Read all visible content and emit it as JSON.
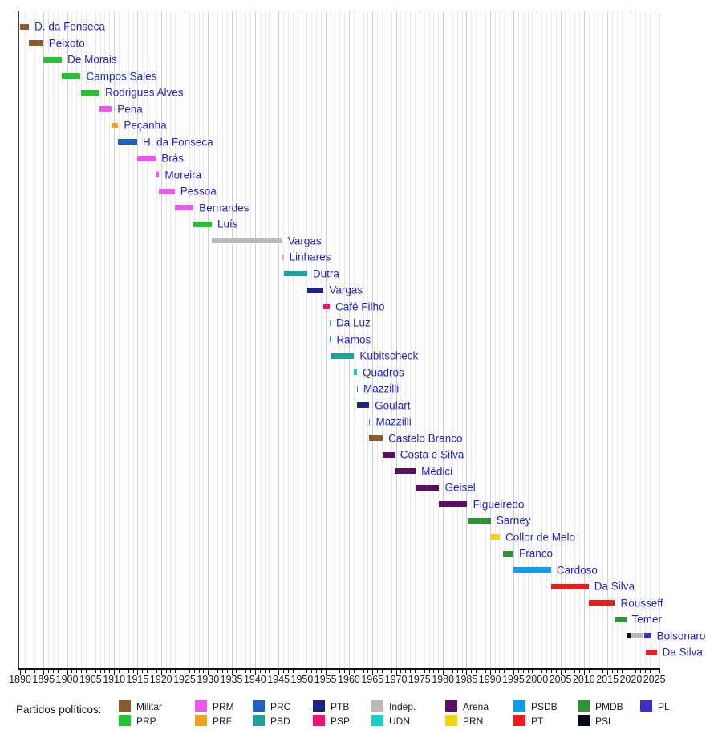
{
  "chart_data": {
    "type": "timeline-gantt",
    "description": "Timeline of presidents of Brazil colored by political party",
    "x_axis": {
      "start_year": 1890,
      "end_year": 2025,
      "minor_tick_interval": 1,
      "major_tick_interval": 5,
      "tick_labels": [
        "1890",
        "1895",
        "1900",
        "1905",
        "1910",
        "1915",
        "1920",
        "1925",
        "1930",
        "1935",
        "1940",
        "1945",
        "1950",
        "1955",
        "1960",
        "1965",
        "1970",
        "1975",
        "1980",
        "1985",
        "1990",
        "1995",
        "2000",
        "2005",
        "2010",
        "2015",
        "2020",
        "2025"
      ]
    },
    "parties": [
      {
        "name": "Militar",
        "color": "#8a5b2b"
      },
      {
        "name": "PRP",
        "color": "#23c432"
      },
      {
        "name": "PRM",
        "color": "#ee58ea"
      },
      {
        "name": "PRF",
        "color": "#f0a21f"
      },
      {
        "name": "PRC",
        "color": "#1d62c6"
      },
      {
        "name": "PSD",
        "color": "#1ea19b"
      },
      {
        "name": "PTB",
        "color": "#1b2383"
      },
      {
        "name": "PSP",
        "color": "#f01170"
      },
      {
        "name": "Indep.",
        "color": "#b9b9b9"
      },
      {
        "name": "UDN",
        "color": "#16cfc6"
      },
      {
        "name": "Arena",
        "color": "#5c0f63"
      },
      {
        "name": "PRN",
        "color": "#f4d50c"
      },
      {
        "name": "PSDB",
        "color": "#0f9cea"
      },
      {
        "name": "PT",
        "color": "#ec1c1c"
      },
      {
        "name": "PMDB",
        "color": "#2d9434"
      },
      {
        "name": "PSL",
        "color": "#050b12"
      },
      {
        "name": "PL",
        "color": "#3a31c8"
      }
    ],
    "presidents": [
      {
        "label": "D. da Fonseca",
        "segments": [
          {
            "party": "Militar",
            "start": 1890.0,
            "end": 1891.9
          }
        ]
      },
      {
        "label": "Peixoto",
        "segments": [
          {
            "party": "Militar",
            "start": 1891.9,
            "end": 1894.9
          }
        ]
      },
      {
        "label": "De Morais",
        "segments": [
          {
            "party": "PRP",
            "start": 1894.9,
            "end": 1898.9
          }
        ]
      },
      {
        "label": "Campos Sales",
        "segments": [
          {
            "party": "PRP",
            "start": 1898.9,
            "end": 1902.9
          }
        ]
      },
      {
        "label": "Rodrigues Alves",
        "segments": [
          {
            "party": "PRP",
            "start": 1902.9,
            "end": 1906.9
          }
        ]
      },
      {
        "label": "Pena",
        "segments": [
          {
            "party": "PRM",
            "start": 1906.9,
            "end": 1909.5
          }
        ]
      },
      {
        "label": "Peçanha",
        "segments": [
          {
            "party": "PRF",
            "start": 1909.5,
            "end": 1910.9
          }
        ]
      },
      {
        "label": "H. da Fonseca",
        "segments": [
          {
            "party": "PRC",
            "start": 1910.9,
            "end": 1914.9
          }
        ]
      },
      {
        "label": "Brás",
        "segments": [
          {
            "party": "PRM",
            "start": 1914.9,
            "end": 1918.9
          }
        ]
      },
      {
        "label": "Moreira",
        "segments": [
          {
            "party": "PRM",
            "start": 1918.9,
            "end": 1919.6
          }
        ]
      },
      {
        "label": "Pessoa",
        "segments": [
          {
            "party": "PRM",
            "start": 1919.6,
            "end": 1922.9
          }
        ]
      },
      {
        "label": "Bernardes",
        "segments": [
          {
            "party": "PRM",
            "start": 1922.9,
            "end": 1926.9
          }
        ]
      },
      {
        "label": "Luís",
        "segments": [
          {
            "party": "PRP",
            "start": 1926.9,
            "end": 1930.8
          }
        ]
      },
      {
        "label": "Vargas",
        "segments": [
          {
            "party": "Indep.",
            "start": 1930.8,
            "end": 1945.8
          }
        ]
      },
      {
        "label": "Linhares",
        "segments": [
          {
            "party": "Indep.",
            "start": 1945.8,
            "end": 1946.1
          }
        ]
      },
      {
        "label": "Dutra",
        "segments": [
          {
            "party": "PSD",
            "start": 1946.1,
            "end": 1951.1
          }
        ]
      },
      {
        "label": "Vargas",
        "segments": [
          {
            "party": "PTB",
            "start": 1951.1,
            "end": 1954.6
          }
        ]
      },
      {
        "label": "Café Filho",
        "segments": [
          {
            "party": "PSP",
            "start": 1954.6,
            "end": 1955.9
          }
        ]
      },
      {
        "label": "Da Luz",
        "segments": [
          {
            "party": "PSD",
            "start": 1955.85,
            "end": 1956.0
          }
        ]
      },
      {
        "label": "Ramos",
        "segments": [
          {
            "party": "PSD",
            "start": 1955.9,
            "end": 1956.15
          }
        ]
      },
      {
        "label": "Kubitscheck",
        "segments": [
          {
            "party": "PSD",
            "start": 1956.1,
            "end": 1961.1
          }
        ]
      },
      {
        "label": "Quadros",
        "segments": [
          {
            "party": "UDN",
            "start": 1961.1,
            "end": 1961.7
          }
        ]
      },
      {
        "label": "Mazzilli",
        "segments": [
          {
            "party": "PSD",
            "start": 1961.65,
            "end": 1961.85
          }
        ]
      },
      {
        "label": "Goulart",
        "segments": [
          {
            "party": "PTB",
            "start": 1961.7,
            "end": 1964.3
          }
        ]
      },
      {
        "label": "Mazzilli",
        "segments": [
          {
            "party": "PSD",
            "start": 1964.3,
            "end": 1964.5
          }
        ]
      },
      {
        "label": "Castelo Branco",
        "segments": [
          {
            "party": "Militar",
            "start": 1964.3,
            "end": 1967.2
          }
        ]
      },
      {
        "label": "Costa e Silva",
        "segments": [
          {
            "party": "Arena",
            "start": 1967.2,
            "end": 1969.7
          }
        ]
      },
      {
        "label": "Médici",
        "segments": [
          {
            "party": "Arena",
            "start": 1969.75,
            "end": 1974.2
          }
        ]
      },
      {
        "label": "Geisel",
        "segments": [
          {
            "party": "Arena",
            "start": 1974.2,
            "end": 1979.2
          }
        ]
      },
      {
        "label": "Figueiredo",
        "segments": [
          {
            "party": "Arena",
            "start": 1979.2,
            "end": 1985.2
          }
        ]
      },
      {
        "label": "Sarney",
        "segments": [
          {
            "party": "PMDB",
            "start": 1985.2,
            "end": 1990.2
          }
        ]
      },
      {
        "label": "Collor de Melo",
        "segments": [
          {
            "party": "PRN",
            "start": 1990.2,
            "end": 1992.1
          }
        ]
      },
      {
        "label": "Franco",
        "segments": [
          {
            "party": "PMDB",
            "start": 1992.8,
            "end": 1995.0
          }
        ]
      },
      {
        "label": "Cardoso",
        "segments": [
          {
            "party": "PSDB",
            "start": 1995.0,
            "end": 2003.0
          }
        ]
      },
      {
        "label": "Da Silva",
        "segments": [
          {
            "party": "PT",
            "start": 2003.0,
            "end": 2011.0
          }
        ]
      },
      {
        "label": "Rousseff",
        "segments": [
          {
            "party": "PT",
            "start": 2011.0,
            "end": 2016.6
          }
        ]
      },
      {
        "label": "Temer",
        "segments": [
          {
            "party": "PMDB",
            "start": 2016.6,
            "end": 2019.0
          }
        ]
      },
      {
        "label": "Bolsonaro",
        "segments": [
          {
            "party": "PSL",
            "start": 2019.0,
            "end": 2020.0
          },
          {
            "party": "Indep.",
            "start": 2020.1,
            "end": 2022.6
          },
          {
            "party": "PL",
            "start": 2022.9,
            "end": 2024.3
          }
        ]
      },
      {
        "label": "Da Silva",
        "segments": [
          {
            "party": "PT",
            "start": 2023.2,
            "end": 2025.5
          }
        ]
      }
    ]
  },
  "legend": {
    "title": "Partidos políticos:"
  }
}
